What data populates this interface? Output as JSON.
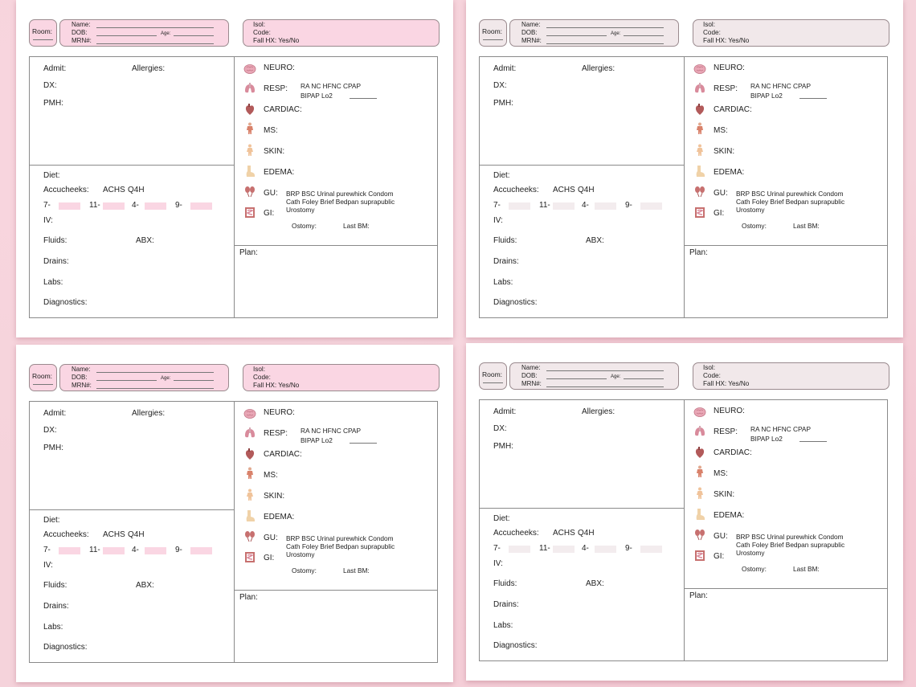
{
  "header": {
    "room": "Room:",
    "name": "Name:",
    "dob": "DOB:",
    "age": "Age:",
    "mrn": "MRN#:",
    "isol": "Isol:",
    "code": "Code:",
    "fall": "Fall HX: Yes/No"
  },
  "left": {
    "admit": "Admit:",
    "allergies": "Allergies:",
    "dx": "DX:",
    "pmh": "PMH:",
    "diet": "Diet:",
    "accu": "Accucheeks:",
    "achs": "ACHS",
    "q4h": "Q4H",
    "times": [
      "7-",
      "11-",
      "4-",
      "9-"
    ],
    "iv": "IV:",
    "fluids": "Fluids:",
    "abx": "ABX:",
    "drains": "Drains:",
    "labs": "Labs:",
    "diagnostics": "Diagnostics:"
  },
  "right": {
    "neuro": "NEURO:",
    "resp": "RESP:",
    "resp_opts1": "RA    NC     HFNC   CPAP",
    "resp_opts2": "BIPAP       Lo2",
    "cardiac": "CARDIAC:",
    "ms": "MS:",
    "skin": "SKIN:",
    "edema": "EDEMA:",
    "gu": "GU:",
    "gu_opts1": "BRP  BSC  Urinal purewhick  Condom",
    "gu_opts2": "Cath  Foley  Brief Bedpan  suprapublic",
    "gu_opts3": "Urostomy",
    "gi": "GI:",
    "ostomy": "Ostomy:",
    "lastbm": "Last BM:",
    "plan": "Plan:"
  },
  "colors": {
    "accent_pink": "#fad6e3",
    "accent_gray": "#f1e8ea",
    "border": "#8a8a8a"
  },
  "icons": [
    "brain-icon",
    "lungs-icon",
    "heart-icon",
    "body-muscle-icon",
    "skin-figure-icon",
    "foot-icon",
    "kidney-icon",
    "intestine-icon"
  ]
}
